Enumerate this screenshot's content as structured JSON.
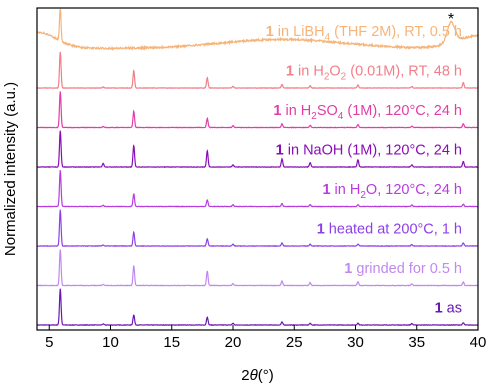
{
  "chart_data": {
    "type": "line",
    "xlabel_parts": {
      "pre": "2",
      "var": "θ",
      "unit": "(°)"
    },
    "ylabel": "Normalized intensity (a.u.)",
    "xlim": [
      4,
      40
    ],
    "x_ticks": [
      5,
      10,
      15,
      20,
      25,
      30,
      35,
      40
    ],
    "x_tick_labels": [
      "5",
      "10",
      "15",
      "20",
      "25",
      "30",
      "35",
      "40"
    ],
    "y_ticks_shown": false,
    "peak_positions_2theta": [
      5.9,
      9.4,
      11.9,
      17.9,
      20.0,
      24.0,
      26.3,
      30.2,
      34.6,
      38.8
    ],
    "annotation": {
      "text": "*",
      "x": 37.8
    },
    "series": [
      {
        "label_num": "1",
        "label_text": " as",
        "color": "#6a17b2",
        "baseline": 0,
        "peak_heights": [
          1.0,
          0.03,
          0.28,
          0.22,
          0.05,
          0.08,
          0.05,
          0.05,
          0.04,
          0.06
        ]
      },
      {
        "label_num": "1",
        "label_text": " grinded for 0.5 h",
        "color": "#c189f0",
        "baseline": 1,
        "peak_heights": [
          1.0,
          0.03,
          0.55,
          0.4,
          0.05,
          0.12,
          0.08,
          0.1,
          0.05,
          0.1
        ]
      },
      {
        "label_num": "1",
        "label_text": " heated at 200°C, 1 h",
        "color": "#8e40e8",
        "baseline": 2,
        "peak_heights": [
          1.0,
          0.03,
          0.38,
          0.2,
          0.05,
          0.08,
          0.05,
          0.05,
          0.04,
          0.08
        ]
      },
      {
        "label_num": "1",
        "label_text": " in H",
        "label_sub": "2",
        "label_rest": "O, 120°C, 24 h",
        "color": "#b83ce0",
        "baseline": 3,
        "peak_heights": [
          1.0,
          0.03,
          0.35,
          0.18,
          0.05,
          0.08,
          0.05,
          0.05,
          0.04,
          0.06
        ]
      },
      {
        "label_num": "1",
        "label_text": " in NaOH (1M), 120°C, 24 h",
        "color": "#8a0cb8",
        "baseline": 4,
        "peak_heights": [
          1.0,
          0.1,
          0.6,
          0.45,
          0.06,
          0.22,
          0.12,
          0.2,
          0.06,
          0.15
        ]
      },
      {
        "label_num": "1",
        "label_text": " in H",
        "label_sub": "2",
        "label_rest": "SO",
        "label_sub2": "4",
        "label_rest2": " (1M), 120°C, 24 h",
        "color": "#e23ea6",
        "baseline": 5,
        "peak_heights": [
          1.0,
          0.03,
          0.45,
          0.25,
          0.05,
          0.1,
          0.06,
          0.08,
          0.04,
          0.1
        ]
      },
      {
        "label_num": "1",
        "label_text": " in H",
        "label_sub": "2",
        "label_rest": "O",
        "label_sub2": "2",
        "label_rest2": " (0.01M), RT, 48 h",
        "color": "#f17f8a",
        "baseline": 6,
        "peak_heights": [
          1.0,
          0.03,
          0.48,
          0.28,
          0.05,
          0.1,
          0.06,
          0.08,
          0.04,
          0.15
        ]
      },
      {
        "label_num": "1",
        "label_text": " in LiBH",
        "label_sub": "4",
        "label_rest": " (THF 2M), RT, 0.5 h",
        "color": "#f7b47a",
        "baseline": 7,
        "noisy": true,
        "hump": true,
        "peak_heights": [
          0.9,
          0.0,
          0.0,
          0.0,
          0.0,
          0.0,
          0.0,
          0.0,
          0.0,
          0.0
        ],
        "extra_peak": {
          "x": 37.8,
          "h": 0.55
        }
      }
    ]
  }
}
